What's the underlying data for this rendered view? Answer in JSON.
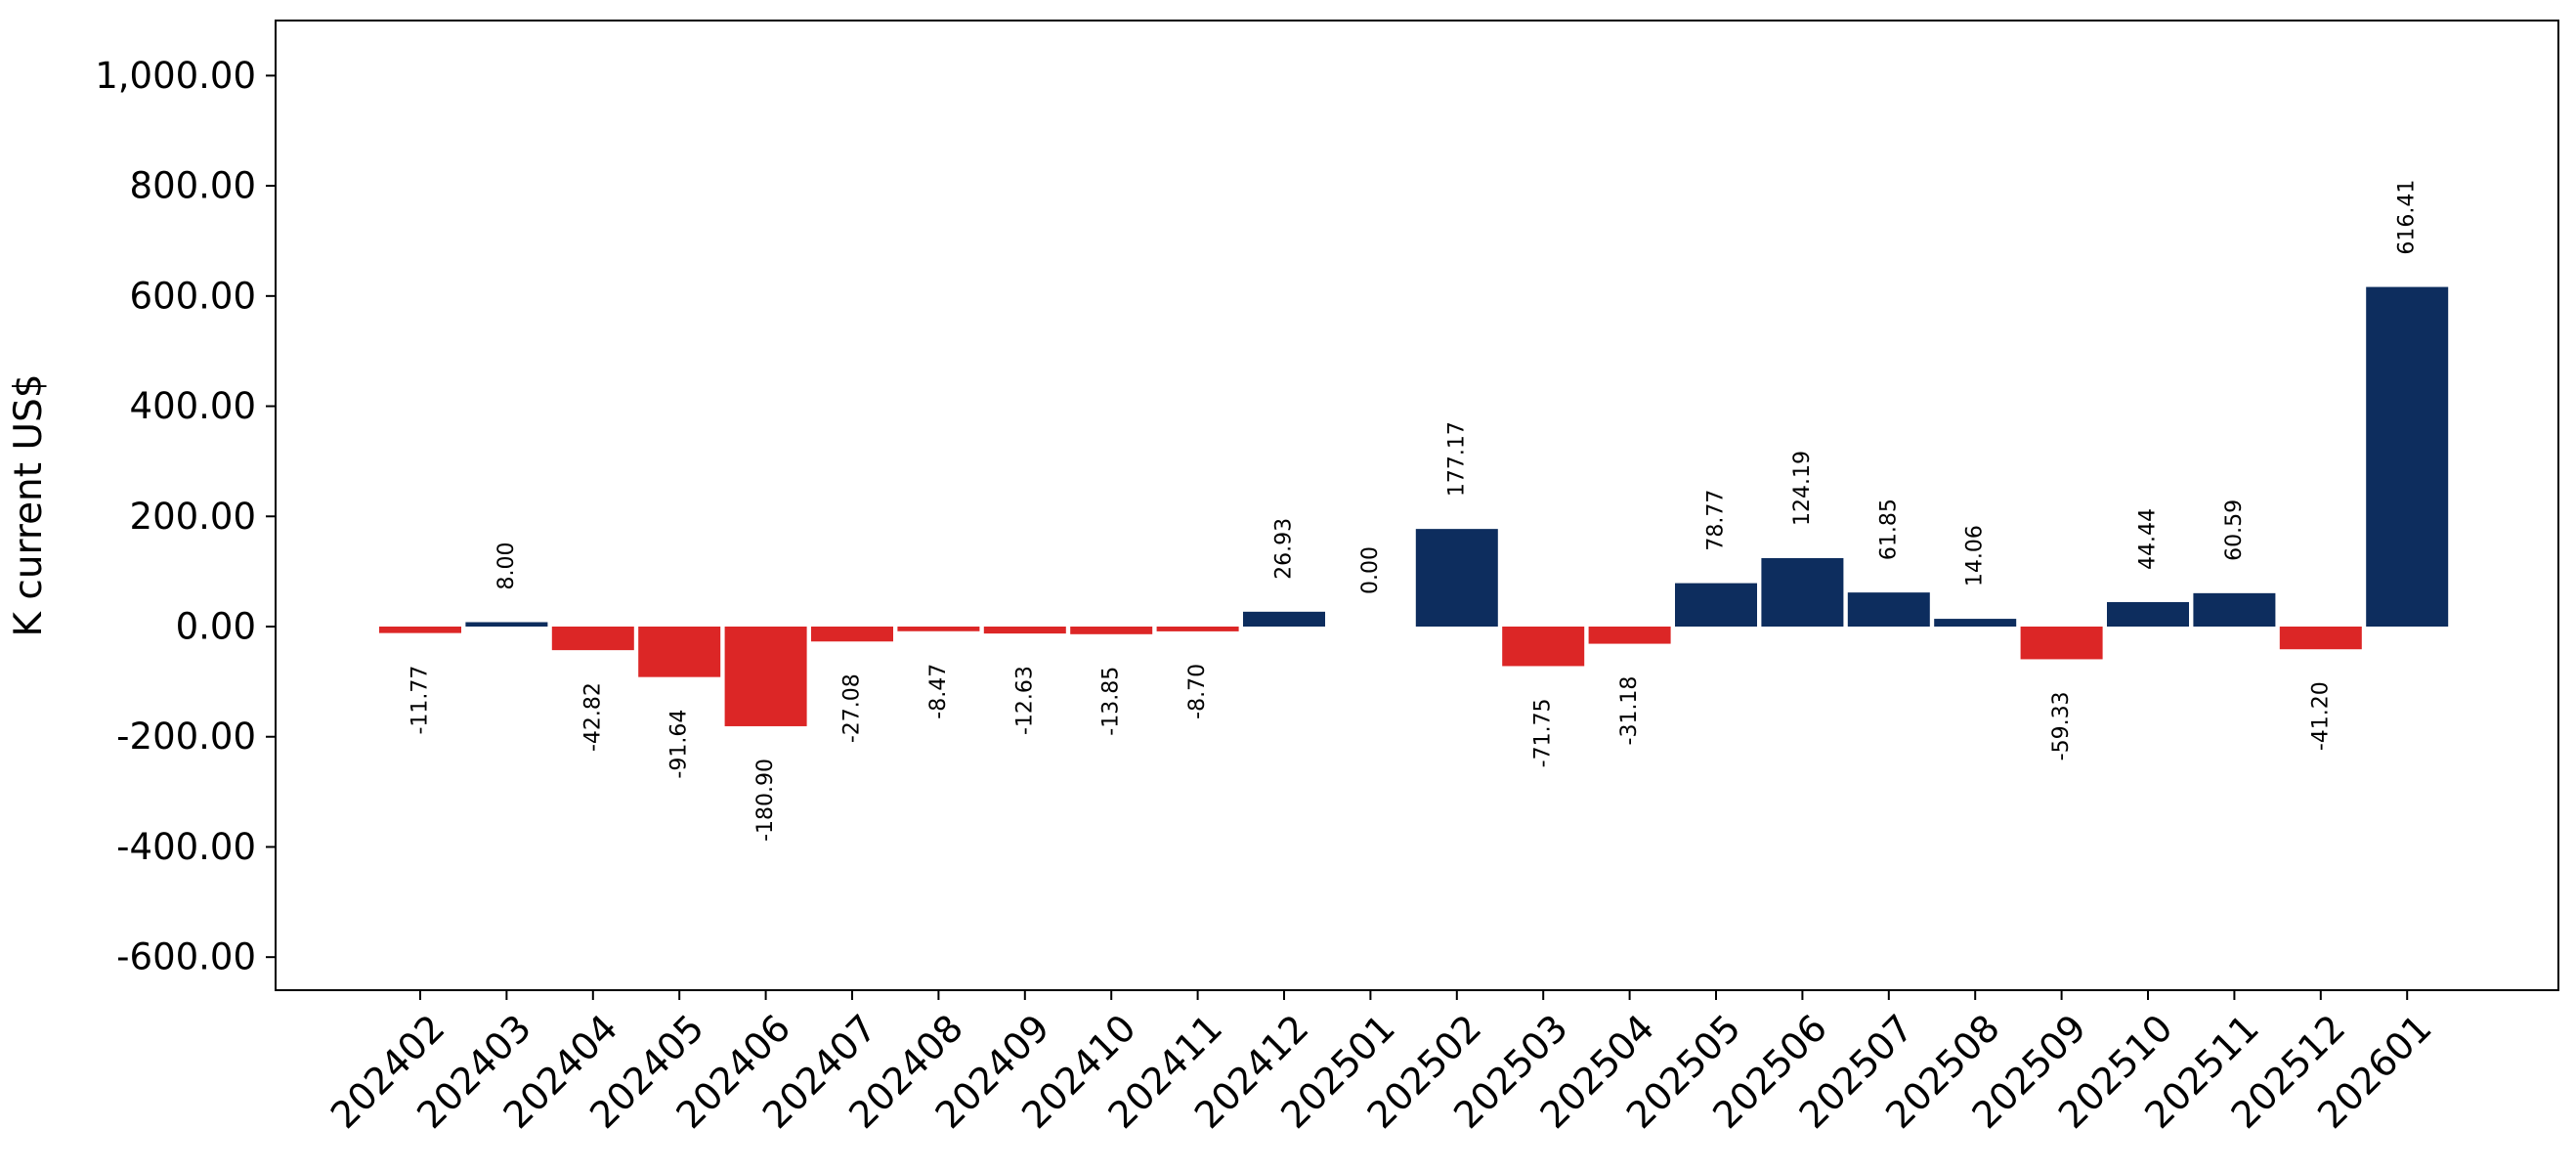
{
  "chart_data": {
    "type": "bar",
    "xlabel": "",
    "ylabel": "K current US$",
    "ylim": [
      -660,
      1100
    ],
    "yticks": [
      -600,
      -400,
      -200,
      0,
      200,
      400,
      600,
      800,
      1000
    ],
    "ytick_labels": [
      "-600.00",
      "-400.00",
      "-200.00",
      "0.00",
      "200.00",
      "400.00",
      "600.00",
      "800.00",
      "1,000.00"
    ],
    "grid": false,
    "legend": "none",
    "colors": {
      "positive": "#0d2d5e",
      "negative": "#dc2626"
    },
    "categories": [
      "202402",
      "202403",
      "202404",
      "202405",
      "202406",
      "202407",
      "202408",
      "202409",
      "202410",
      "202411",
      "202412",
      "202501",
      "202502",
      "202503",
      "202504",
      "202505",
      "202506",
      "202507",
      "202508",
      "202509",
      "202510",
      "202511",
      "202512",
      "202601"
    ],
    "values": [
      -11.77,
      8.0,
      -42.82,
      -91.64,
      -180.9,
      -27.08,
      -8.47,
      -12.63,
      -13.85,
      -8.7,
      26.93,
      0.0,
      177.17,
      -71.75,
      -31.18,
      78.77,
      124.19,
      61.85,
      14.06,
      -59.33,
      44.44,
      60.59,
      -41.2,
      616.41
    ],
    "data_labels": [
      "-11.77",
      "8.00",
      "-42.82",
      "-91.64",
      "-180.90",
      "-27.08",
      "-8.47",
      "-12.63",
      "-13.85",
      "-8.70",
      "26.93",
      "0.00",
      "177.17",
      "-71.75",
      "-31.18",
      "78.77",
      "124.19",
      "61.85",
      "14.06",
      "-59.33",
      "44.44",
      "60.59",
      "-41.20",
      "616.41"
    ]
  }
}
